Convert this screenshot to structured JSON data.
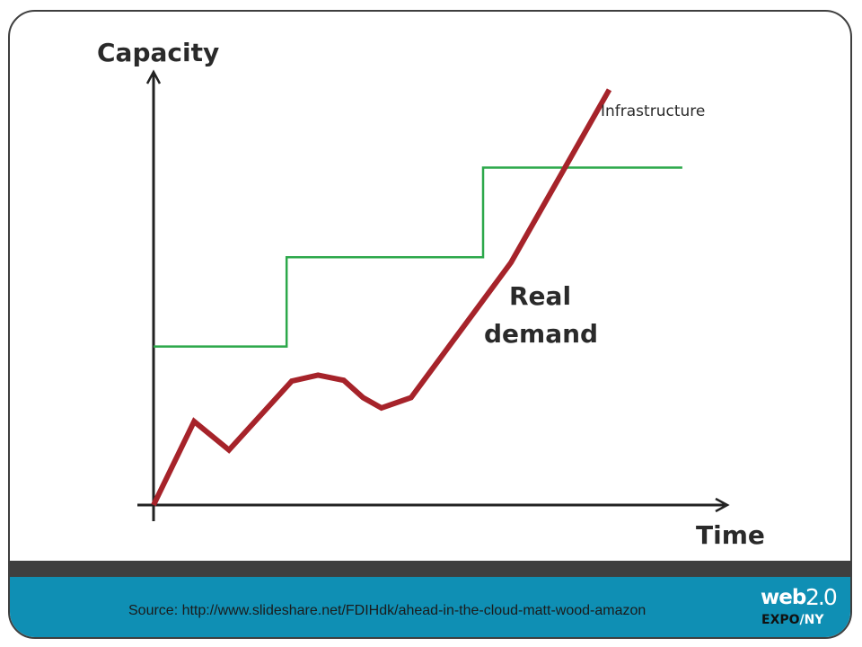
{
  "chart_data": {
    "type": "line",
    "ylabel": "Capacity",
    "xlabel": "Time",
    "xlim": [
      0,
      100
    ],
    "ylim": [
      0,
      100
    ],
    "grid": false,
    "series": [
      {
        "name": "Infrastructure",
        "color": "#2ca84a",
        "step": true,
        "x": [
          0,
          23.3,
          23.3,
          57.7,
          57.7,
          92.6
        ],
        "y": [
          36.6,
          36.6,
          57.2,
          57.2,
          77.9,
          77.9
        ]
      },
      {
        "name": "Real demand",
        "color": "#a6232a",
        "x": [
          0,
          7.1,
          13.2,
          24.2,
          28.8,
          33.3,
          36.7,
          39.9,
          45.1,
          62.6,
          79.8
        ],
        "y": [
          0,
          19.3,
          12.7,
          28.6,
          30.0,
          28.8,
          24.8,
          22.4,
          24.8,
          56.0,
          95.9
        ]
      }
    ]
  },
  "source": "Source: http://www.slideshare.net/FDIHdk/ahead-in-the-cloud-matt-wood-amazon",
  "logo": {
    "web": "web",
    "version": "2.0",
    "expo": "EXPO",
    "slash": "/",
    "ny": "NY"
  },
  "colors": {
    "footer": "#0f8fb4",
    "band": "#3f3f3f",
    "axis": "#222222"
  }
}
